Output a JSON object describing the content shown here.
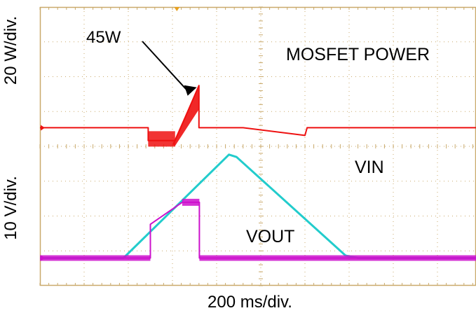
{
  "chart_data": {
    "type": "line",
    "xlabel": "200  ms/div.",
    "ylabel_top": "20 W/div.",
    "ylabel_bottom": "10  V/div.",
    "annotation_peak": "45W",
    "grid": true,
    "x_divisions": 10,
    "y_divisions": 8,
    "series": [
      {
        "name": "MOSFET POWER",
        "color": "#ee1111",
        "points_div": [
          [
            0.0,
            3.77
          ],
          [
            2.45,
            3.77
          ],
          [
            2.45,
            3.4
          ],
          [
            3.06,
            3.4
          ],
          [
            3.6,
            4.98
          ],
          [
            3.6,
            3.77
          ],
          [
            4.6,
            3.77
          ],
          [
            6.0,
            3.55
          ],
          [
            6.05,
            3.77
          ],
          [
            10.0,
            3.77
          ]
        ]
      },
      {
        "name": "VIN",
        "color": "#22cccc",
        "points_div": [
          [
            0.0,
            0.03
          ],
          [
            1.89,
            0.03
          ],
          [
            4.28,
            3.0
          ],
          [
            4.45,
            2.93
          ],
          [
            6.92,
            0.1
          ],
          [
            7.2,
            0.03
          ],
          [
            10.0,
            0.03
          ]
        ]
      },
      {
        "name": "VOUT",
        "color": "#cc11cc",
        "points_div": [
          [
            0.0,
            0.03
          ],
          [
            2.5,
            0.03
          ],
          [
            2.5,
            1.0
          ],
          [
            3.22,
            1.63
          ],
          [
            3.61,
            1.63
          ],
          [
            3.61,
            0.03
          ],
          [
            10.0,
            0.03
          ]
        ]
      }
    ]
  }
}
